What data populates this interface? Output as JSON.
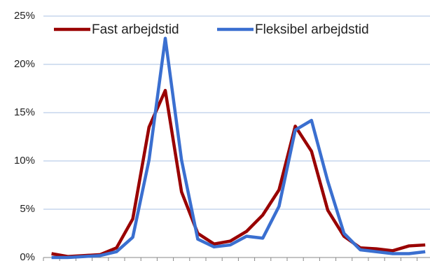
{
  "chart_data": {
    "type": "line",
    "categories": [
      null,
      null,
      null,
      null,
      null,
      null,
      null,
      null,
      null,
      null,
      null,
      null,
      null,
      null,
      null,
      null,
      null,
      null,
      null,
      null,
      null,
      null,
      null,
      null
    ],
    "series": [
      {
        "name": "Fast arbejdstid",
        "color": "#990000",
        "values": [
          0.4,
          0.1,
          0.2,
          0.3,
          1.0,
          4.0,
          13.5,
          17.3,
          6.8,
          2.5,
          1.4,
          1.7,
          2.7,
          4.4,
          7.0,
          13.6,
          11.0,
          4.9,
          2.2,
          1.0,
          0.9,
          0.7,
          1.2,
          1.3
        ]
      },
      {
        "name": "Fleksibel arbejdstid",
        "color": "#3a6fd0",
        "values": [
          0.0,
          0.0,
          0.1,
          0.2,
          0.6,
          2.1,
          10.1,
          22.7,
          10.1,
          1.9,
          1.1,
          1.3,
          2.2,
          2.0,
          5.3,
          13.2,
          14.2,
          7.9,
          2.5,
          0.8,
          0.6,
          0.4,
          0.4,
          0.6
        ]
      }
    ],
    "ylim": [
      0,
      25
    ],
    "yticks": [
      {
        "value": 0,
        "label": "0%"
      },
      {
        "value": 5,
        "label": "5%"
      },
      {
        "value": 10,
        "label": "10%"
      },
      {
        "value": 15,
        "label": "15%"
      },
      {
        "value": 20,
        "label": "20%"
      },
      {
        "value": 25,
        "label": "25%"
      }
    ],
    "grid": true,
    "legend": "top"
  }
}
